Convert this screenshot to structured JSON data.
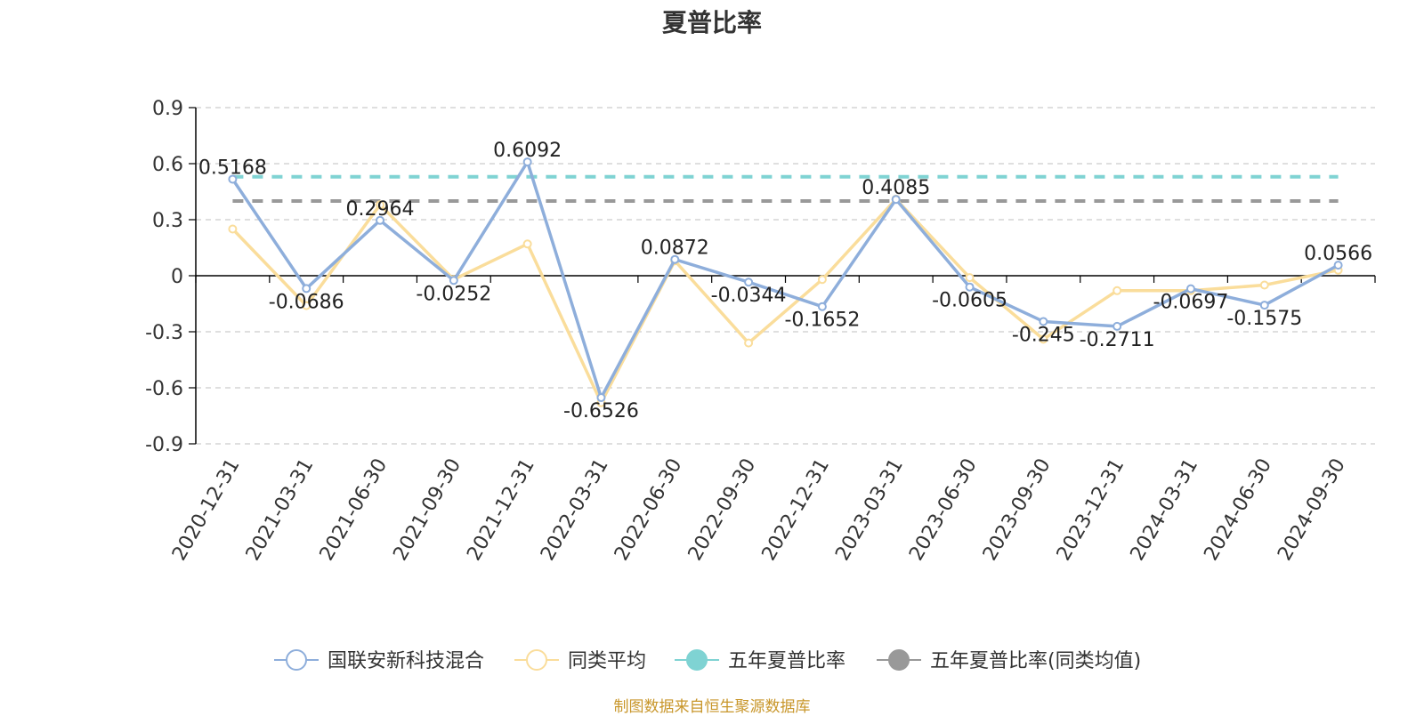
{
  "title": "夏普比率",
  "source": "制图数据来自恒生聚源数据库",
  "colors": {
    "fund": "#8eaedb",
    "avg": "#fadd9b",
    "five_year": "#7fd3d3",
    "five_year_avg": "#999999",
    "grid": "#cccccc",
    "axis": "#000000"
  },
  "chart_data": {
    "type": "line",
    "title": "夏普比率",
    "categories": [
      "2020-12-31",
      "2021-03-31",
      "2021-06-30",
      "2021-09-30",
      "2021-12-31",
      "2022-03-31",
      "2022-06-30",
      "2022-09-30",
      "2022-12-31",
      "2023-03-31",
      "2023-06-30",
      "2023-09-30",
      "2023-12-31",
      "2024-03-31",
      "2024-06-30",
      "2024-09-30"
    ],
    "ylim": [
      -0.9,
      0.9
    ],
    "yticks": [
      "0.9",
      "0.6",
      "0.3",
      "0",
      "-0.3",
      "-0.6",
      "-0.9"
    ],
    "grid": true,
    "legend_position": "bottom",
    "series": [
      {
        "name": "国联安新科技混合",
        "values": [
          0.5168,
          -0.0686,
          0.2964,
          -0.0252,
          0.6092,
          -0.6526,
          0.0872,
          -0.0344,
          -0.1652,
          0.4085,
          -0.0605,
          -0.245,
          -0.2711,
          -0.0697,
          -0.1575,
          0.0566
        ],
        "labels": [
          "0.5168",
          "-0.0686",
          "0.2964",
          "-0.0252",
          "0.6092",
          "-0.6526",
          "0.0872",
          "-0.0344",
          "-0.1652",
          "0.4085",
          "-0.0605",
          "-0.245",
          "-0.2711",
          "-0.0697",
          "-0.1575",
          "0.0566"
        ]
      },
      {
        "name": "同类平均",
        "values": [
          0.25,
          -0.16,
          0.38,
          -0.02,
          0.17,
          -0.68,
          0.08,
          -0.36,
          -0.02,
          0.41,
          -0.01,
          -0.34,
          -0.08,
          -0.08,
          -0.05,
          0.03
        ]
      },
      {
        "name": "五年夏普比率",
        "constant": 0.53
      },
      {
        "name": "五年夏普比率(同类均值)",
        "constant": 0.4
      }
    ]
  }
}
